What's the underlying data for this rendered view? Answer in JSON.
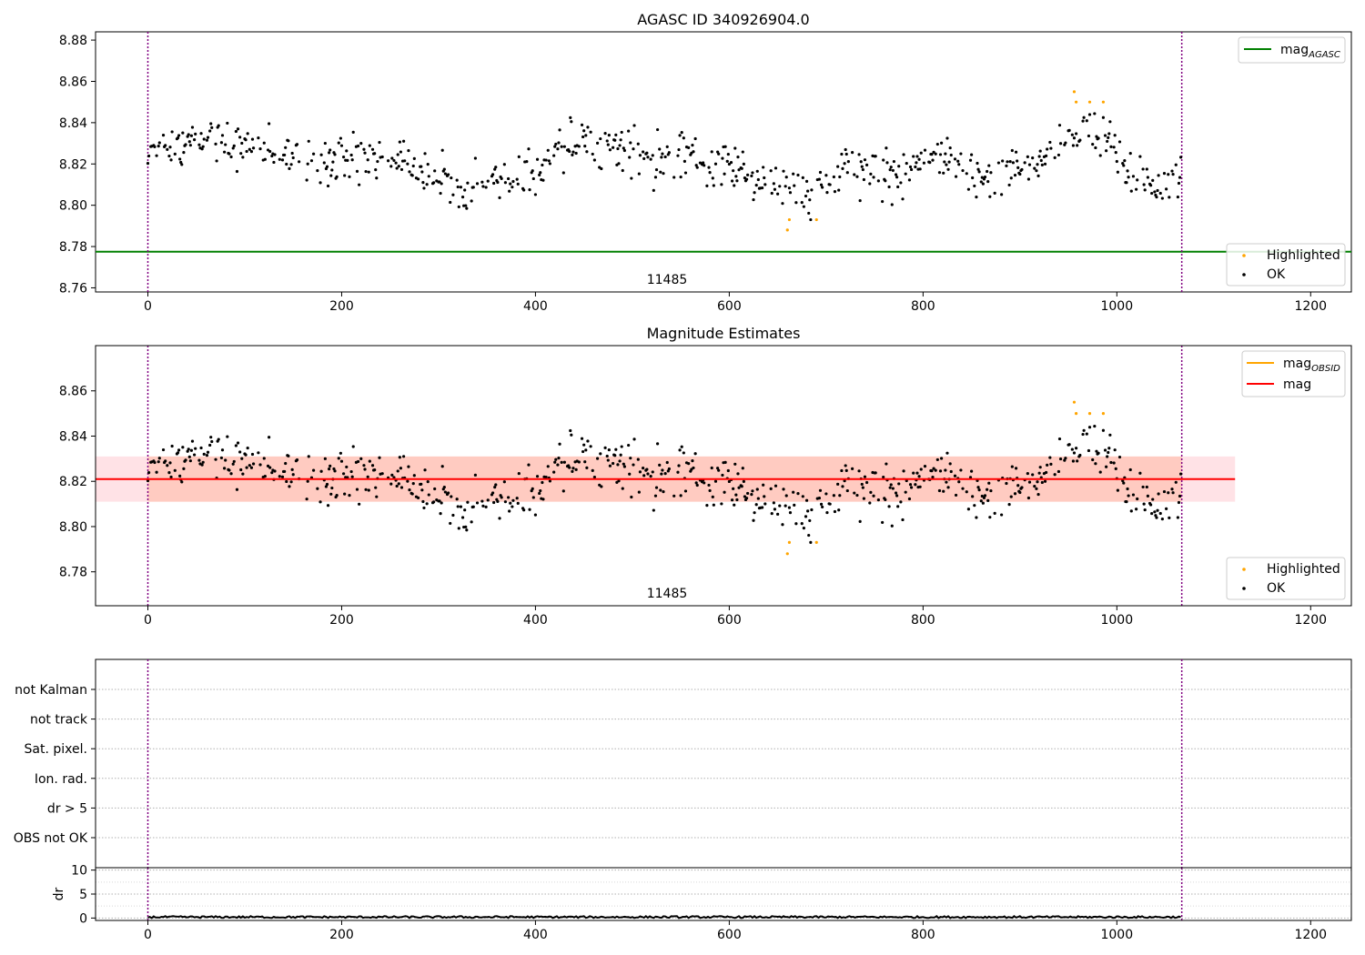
{
  "chart_data": [
    {
      "type": "scatter",
      "title": "AGASC ID 340926904.0",
      "xlabel": "",
      "ylabel": "",
      "xlim": [
        -54,
        1242
      ],
      "ylim": [
        8.758,
        8.884
      ],
      "xticks": [
        0,
        200,
        400,
        600,
        800,
        1000,
        1200
      ],
      "yticks": [
        8.76,
        8.78,
        8.8,
        8.82,
        8.84,
        8.86,
        8.88
      ],
      "ytick_labels": [
        "8.76",
        "8.78",
        "8.80",
        "8.82",
        "8.84",
        "8.86",
        "8.88"
      ],
      "obs_boundaries": [
        0,
        1067
      ],
      "obsid_label": "11485",
      "obsid_label_x": 533,
      "grid": false,
      "legend_top": {
        "location": "upper right",
        "entries": [
          {
            "label": "mag",
            "subscript": "AGASC",
            "color": "#008000"
          }
        ]
      },
      "legend_bottom": {
        "location": "lower right",
        "entries": [
          {
            "label": "Highlighted",
            "color": "#ffa500"
          },
          {
            "label": "OK",
            "color": "#000000"
          }
        ]
      },
      "lines": [
        {
          "name": "mag_AGASC",
          "y": 8.7775,
          "color": "#008000"
        }
      ],
      "series": [
        {
          "name": "OK",
          "color": "#000000",
          "n_points": 1067,
          "x_range": [
            0,
            1066
          ],
          "median": 8.821,
          "std": 0.01,
          "approx_y_range": [
            8.795,
            8.845
          ]
        },
        {
          "name": "Highlighted",
          "color": "#ffa500",
          "x": [
            956,
            958,
            972,
            986,
            660,
            662,
            690
          ],
          "y": [
            8.855,
            8.85,
            8.85,
            8.85,
            8.788,
            8.793,
            8.793
          ]
        }
      ]
    },
    {
      "type": "scatter",
      "title": "Magnitude Estimates",
      "xlabel": "",
      "ylabel": "",
      "xlim": [
        -54,
        1242
      ],
      "ylim": [
        8.765,
        8.88
      ],
      "xticks": [
        0,
        200,
        400,
        600,
        800,
        1000,
        1200
      ],
      "yticks": [
        8.78,
        8.8,
        8.82,
        8.84,
        8.86
      ],
      "ytick_labels": [
        "8.78",
        "8.80",
        "8.82",
        "8.84",
        "8.86"
      ],
      "obs_boundaries": [
        0,
        1067
      ],
      "obsid_label": "11485",
      "obsid_label_x": 533,
      "grid": false,
      "legend_top": {
        "location": "upper right",
        "entries": [
          {
            "label": "mag",
            "subscript": "OBSID",
            "color": "#ffa500"
          },
          {
            "label": "mag",
            "subscript": "",
            "color": "#ff0000"
          }
        ]
      },
      "legend_bottom": {
        "location": "lower right",
        "entries": [
          {
            "label": "Highlighted",
            "color": "#ffa500"
          },
          {
            "label": "OK",
            "color": "#000000"
          }
        ]
      },
      "lines": [
        {
          "name": "mag",
          "y": 8.821,
          "x_range": [
            -54,
            1122
          ],
          "color": "#ff0000"
        }
      ],
      "bands": [
        {
          "name": "mag band",
          "y_range": [
            8.811,
            8.831
          ],
          "x_range": [
            -54,
            1122
          ],
          "color": "#ffb6c1",
          "alpha": 0.4
        },
        {
          "name": "mag_OBSID band",
          "y_range": [
            8.811,
            8.831
          ],
          "x_range": [
            0,
            1067
          ],
          "color": "#ffa07a",
          "alpha": 0.35
        }
      ]
    },
    {
      "type": "scatter",
      "title": "",
      "xlim": [
        -54,
        1242
      ],
      "xticks": [
        0,
        200,
        400,
        600,
        800,
        1000,
        1200
      ],
      "flag_rows": [
        "not Kalman",
        "not track",
        "Sat. pixel.",
        "Ion. rad.",
        "dr > 5",
        "OBS not OK"
      ],
      "obs_boundaries": [
        0,
        1067
      ],
      "flag_points": []
    },
    {
      "type": "line",
      "ylabel": "dr",
      "xlim": [
        -54,
        1242
      ],
      "ylim": [
        -0.5,
        10.5
      ],
      "yticks": [
        0,
        5,
        10
      ],
      "ytick_labels": [
        "0",
        "5",
        "10"
      ],
      "xticks": [
        0,
        200,
        400,
        600,
        800,
        1000,
        1200
      ],
      "obs_boundaries": [
        0,
        1067
      ],
      "grid": true,
      "series": [
        {
          "name": "dr",
          "color": "#000000",
          "n_points": 1067,
          "approx_y_range": [
            0.0,
            0.4
          ]
        }
      ]
    }
  ]
}
